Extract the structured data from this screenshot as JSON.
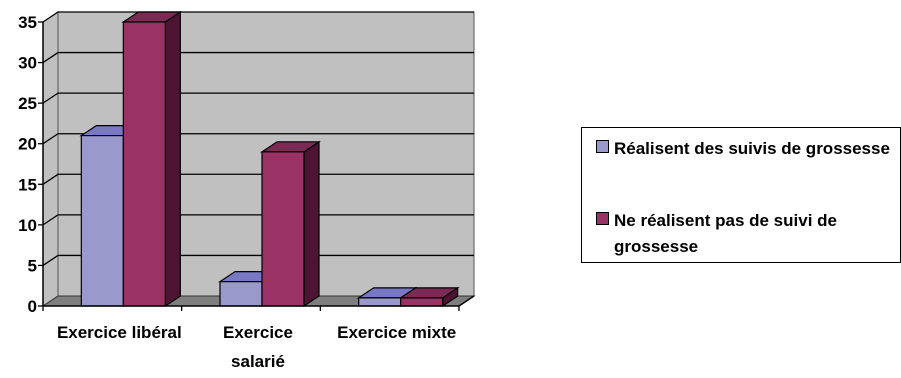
{
  "chart_data": {
    "type": "bar",
    "categories": [
      "Exercice libéral",
      "Exercice salarié",
      "Exercice mixte"
    ],
    "series": [
      {
        "name": "Réalisent des suivis de grossesse",
        "values": [
          21,
          3,
          1
        ],
        "color": "#9999cc",
        "side_color": "#5c5c99",
        "top_color": "#7878c4"
      },
      {
        "name": "Ne réalisent pas de suivi de grossesse",
        "values": [
          35,
          19,
          1
        ],
        "color": "#993366",
        "side_color": "#4d1433",
        "top_color": "#7a2a54"
      }
    ],
    "ylim": [
      0,
      35
    ],
    "yticks": [
      "0",
      "5",
      "10",
      "15",
      "20",
      "25",
      "30",
      "35"
    ],
    "grid": true,
    "three_d": true,
    "plot_background": "#c0c0c0",
    "legend_position": "right"
  }
}
